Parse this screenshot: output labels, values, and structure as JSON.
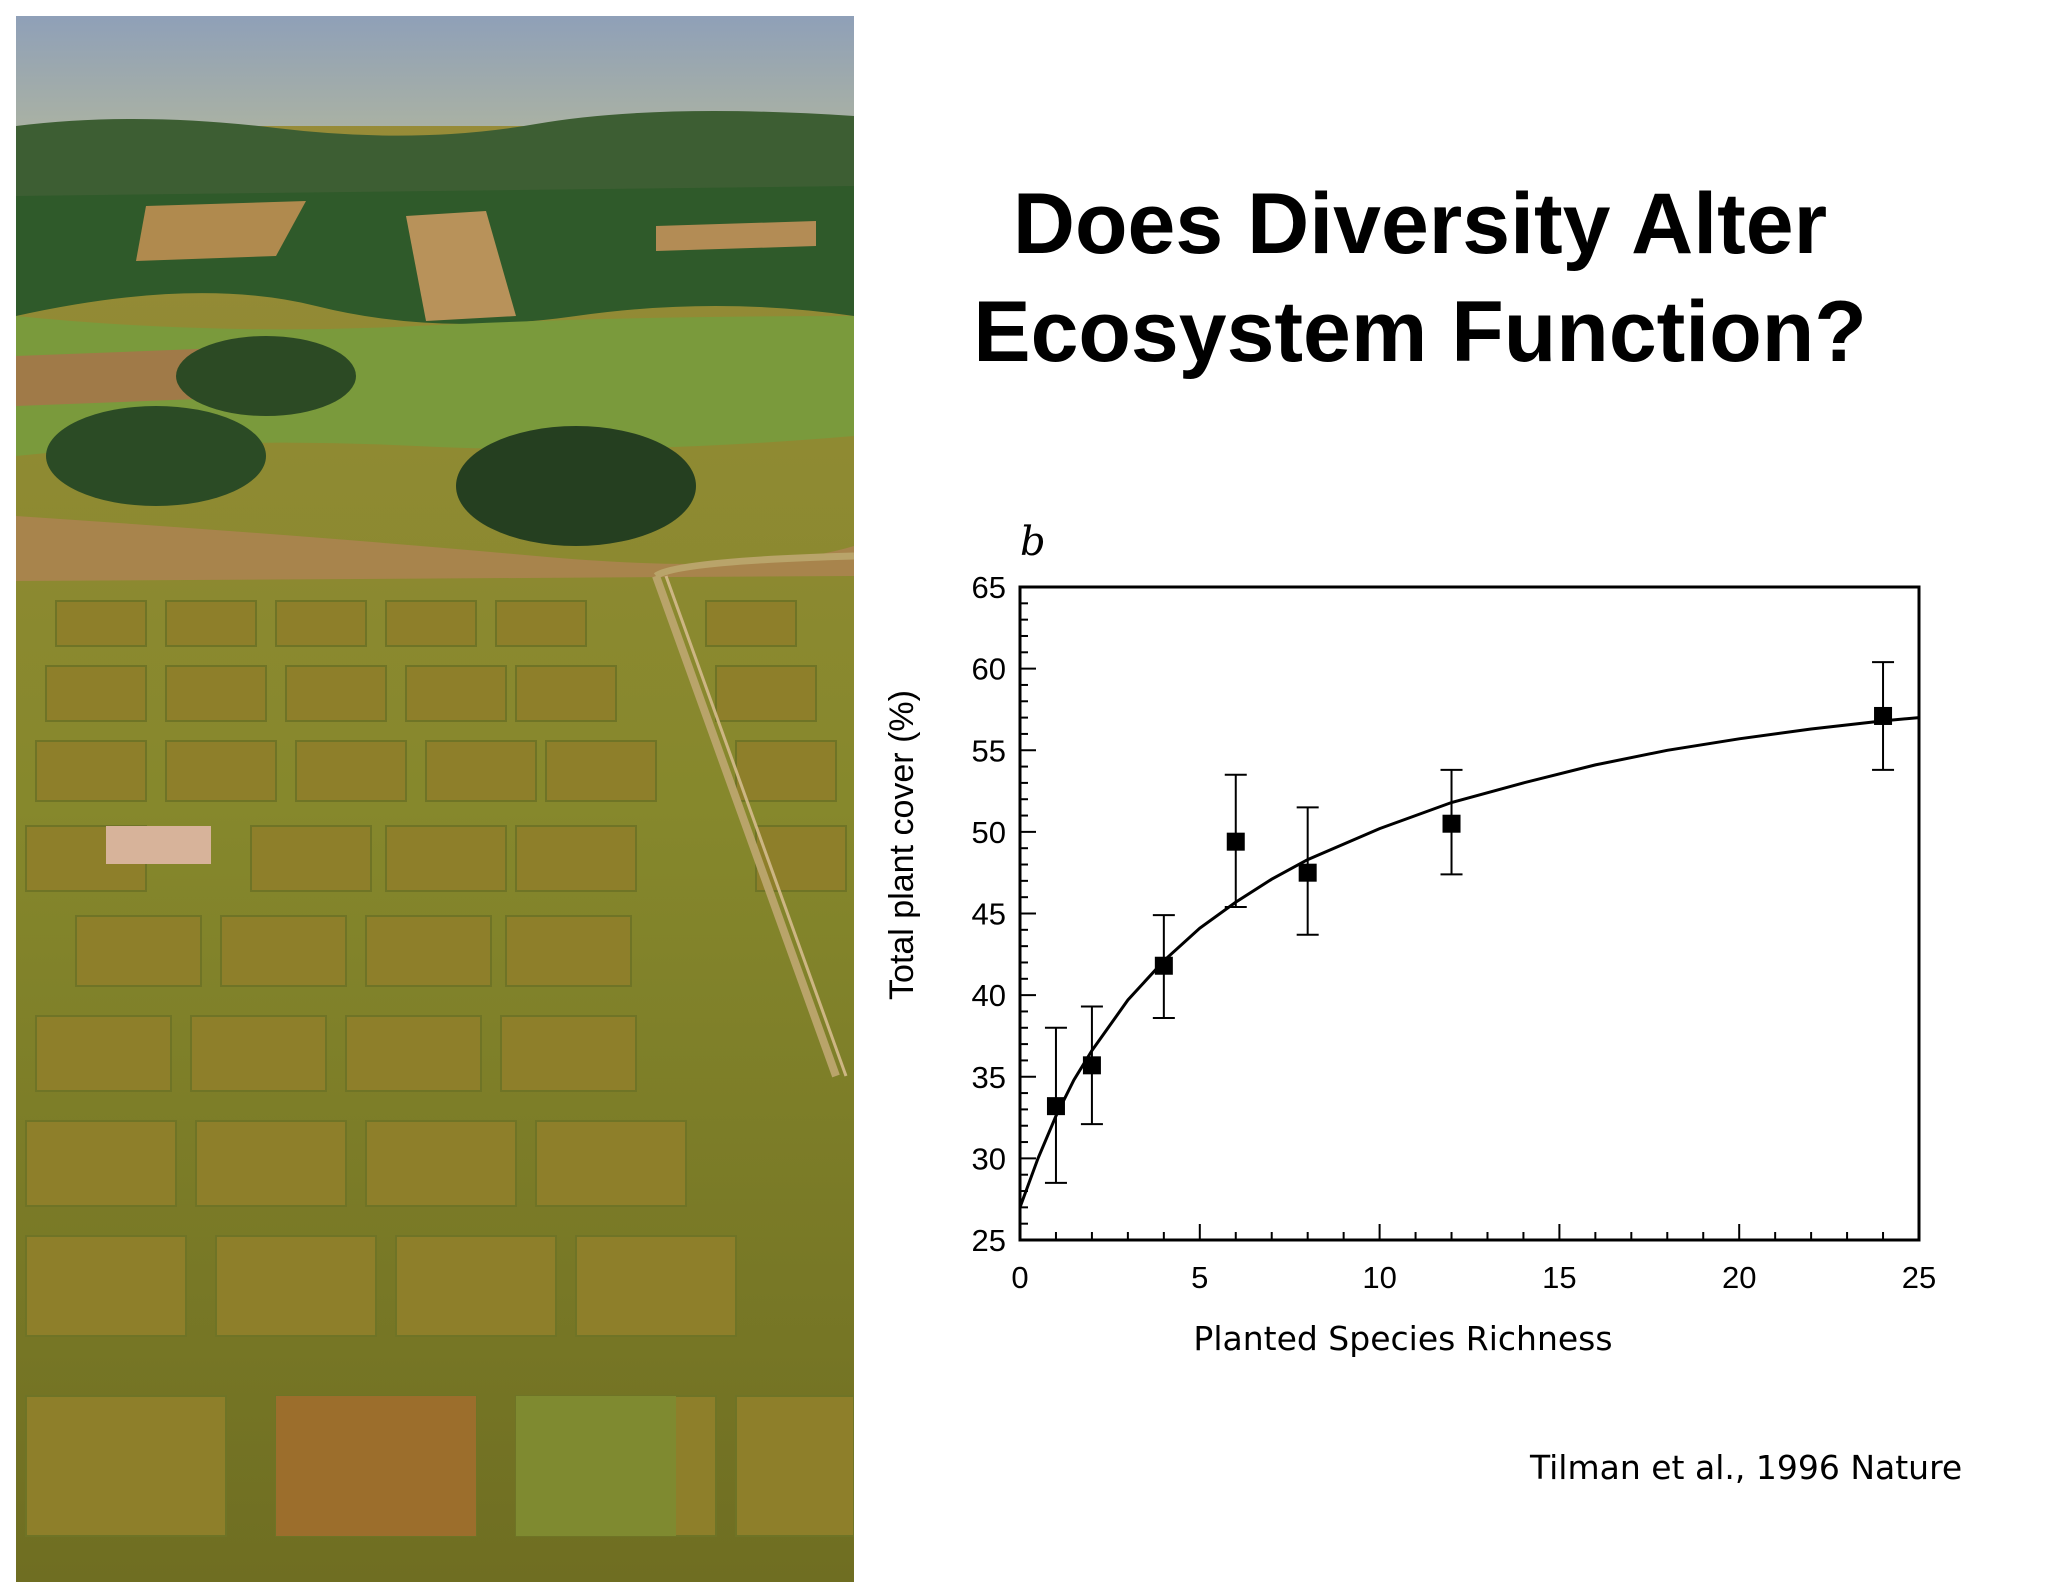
{
  "slide": {
    "title_line1": "Does Diversity Alter",
    "title_line2": "Ecosystem Function?",
    "citation": "Tilman et al., 1996 Nature"
  },
  "photo": {
    "subject": "aerial-view-of-grassland-experimental-plots",
    "colors": {
      "sky": "#8c9cb0",
      "forest": "#2f5a2a",
      "field": "#a9982c",
      "plot": "#8a7a24",
      "path": "#b09a66"
    }
  },
  "chart_data": {
    "type": "scatter",
    "panel_label": "b",
    "xlabel": "Planted Species Richness",
    "ylabel": "Total plant cover (%)",
    "xlim": [
      0,
      25
    ],
    "ylim": [
      25,
      65
    ],
    "xticks": [
      0,
      5,
      10,
      15,
      20,
      25
    ],
    "yticks": [
      25,
      30,
      35,
      40,
      45,
      50,
      55,
      60,
      65
    ],
    "grid": false,
    "series": [
      {
        "points": [
          {
            "x": 1,
            "y": 33.2,
            "err_low": 28.5,
            "err_high": 38.0
          },
          {
            "x": 2,
            "y": 35.7,
            "err_low": 32.1,
            "err_high": 39.3
          },
          {
            "x": 4,
            "y": 41.8,
            "err_low": 38.6,
            "err_high": 44.9
          },
          {
            "x": 6,
            "y": 49.4,
            "err_low": 45.4,
            "err_high": 53.5
          },
          {
            "x": 8,
            "y": 47.5,
            "err_low": 43.7,
            "err_high": 51.5
          },
          {
            "x": 12,
            "y": 50.5,
            "err_low": 47.4,
            "err_high": 53.8
          },
          {
            "x": 24,
            "y": 57.1,
            "err_low": 53.8,
            "err_high": 60.4
          }
        ]
      }
    ],
    "fit_curve": {
      "x": [
        0,
        0.5,
        1,
        1.5,
        2,
        3,
        4,
        5,
        6,
        7,
        8,
        10,
        12,
        14,
        16,
        18,
        20,
        22,
        24,
        25
      ],
      "y": [
        27.0,
        30.0,
        32.6,
        34.8,
        36.6,
        39.7,
        42.1,
        44.1,
        45.7,
        47.1,
        48.3,
        50.2,
        51.8,
        53.0,
        54.1,
        55.0,
        55.7,
        56.3,
        56.8,
        57.0
      ]
    }
  }
}
